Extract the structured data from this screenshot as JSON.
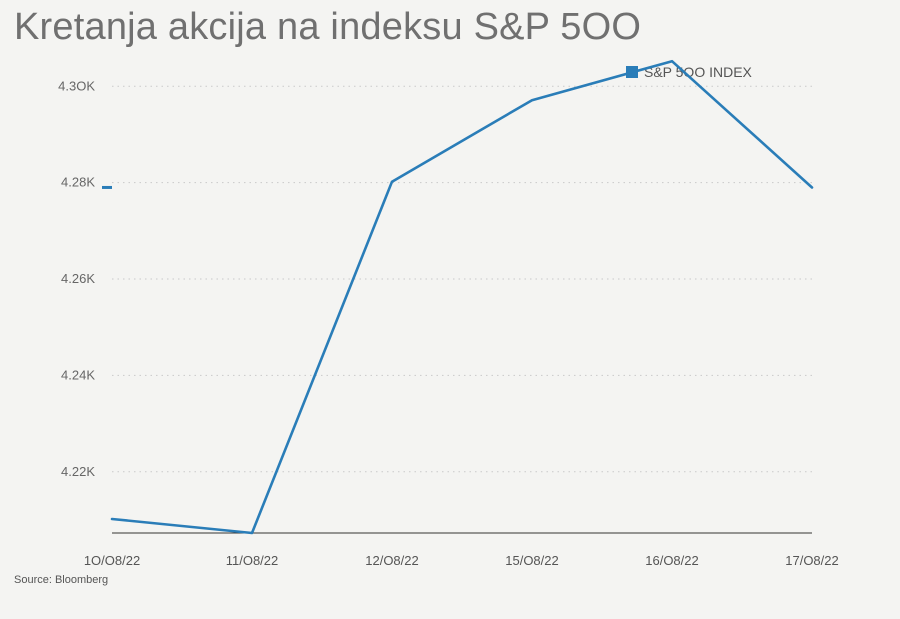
{
  "title": "Kretanja akcija na indeksu S&P 5OO",
  "source": "Source: Bloomberg",
  "chart_data": {
    "type": "line",
    "title": "Kretanja akcija na indeksu S&P 5OO",
    "xlabel": "",
    "ylabel": "",
    "categories": [
      "1O/O8/22",
      "11/O8/22",
      "12/O8/22",
      "15/O8/22",
      "16/O8/22",
      "17/O8/22"
    ],
    "series": [
      {
        "name": "S&P 5OO INDEX",
        "color": "#2a7db8",
        "values": [
          4210.2,
          4207.3,
          4280.2,
          4297.1,
          4305.2,
          4279.0
        ]
      }
    ],
    "yticks": [
      4220,
      4240,
      4260,
      4280,
      4300
    ],
    "ytick_labels": [
      "4.22K",
      "4.24K",
      "4.26K",
      "4.28K",
      "4.3OK"
    ],
    "ylim": [
      4207.3,
      4309.6
    ],
    "current_value": 4279.0,
    "grid": true,
    "legend_position": "top-right"
  }
}
